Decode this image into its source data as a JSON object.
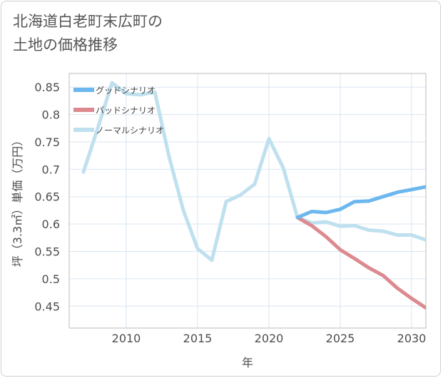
{
  "page": {
    "title_line1": "北海道白老町末広町の",
    "title_line2": "土地の価格推移"
  },
  "chart_data": {
    "type": "line",
    "xlabel": "年",
    "ylabel": "坪（3.3㎡）単価（万円）",
    "xlim": [
      2006,
      2031
    ],
    "ylim": [
      0.41,
      0.875
    ],
    "xticks": [
      2010,
      2015,
      2020,
      2025,
      2030
    ],
    "yticks": [
      0.45,
      0.5,
      0.55,
      0.6,
      0.65,
      0.7,
      0.75,
      0.8,
      0.85
    ],
    "grid": true,
    "legend_position": "top-left",
    "series": [
      {
        "name": "グッドシナリオ",
        "color": "#6cb7ee",
        "x": [
          2022,
          2023,
          2024,
          2025,
          2026,
          2027,
          2028,
          2029,
          2030,
          2031
        ],
        "y": [
          0.612,
          0.623,
          0.621,
          0.627,
          0.641,
          0.642,
          0.65,
          0.658,
          0.663,
          0.668
        ]
      },
      {
        "name": "バッドシナリオ",
        "color": "#dc8a90",
        "x": [
          2022,
          2023,
          2024,
          2025,
          2026,
          2027,
          2028,
          2029,
          2030,
          2031
        ],
        "y": [
          0.612,
          0.597,
          0.577,
          0.553,
          0.537,
          0.52,
          0.506,
          0.483,
          0.464,
          0.447
        ]
      },
      {
        "name": "ノーマルシナリオ",
        "color": "#bfe0ee",
        "x": [
          2007,
          2008,
          2009,
          2010,
          2011,
          2012,
          2013,
          2014,
          2015,
          2016,
          2017,
          2018,
          2019,
          2020,
          2021,
          2022,
          2023,
          2024,
          2025,
          2026,
          2027,
          2028,
          2029,
          2030,
          2031
        ],
        "y": [
          0.695,
          0.775,
          0.858,
          0.838,
          0.836,
          0.841,
          0.723,
          0.625,
          0.555,
          0.534,
          0.641,
          0.653,
          0.673,
          0.756,
          0.703,
          0.612,
          0.602,
          0.604,
          0.596,
          0.597,
          0.589,
          0.587,
          0.58,
          0.58,
          0.571
        ]
      }
    ]
  }
}
